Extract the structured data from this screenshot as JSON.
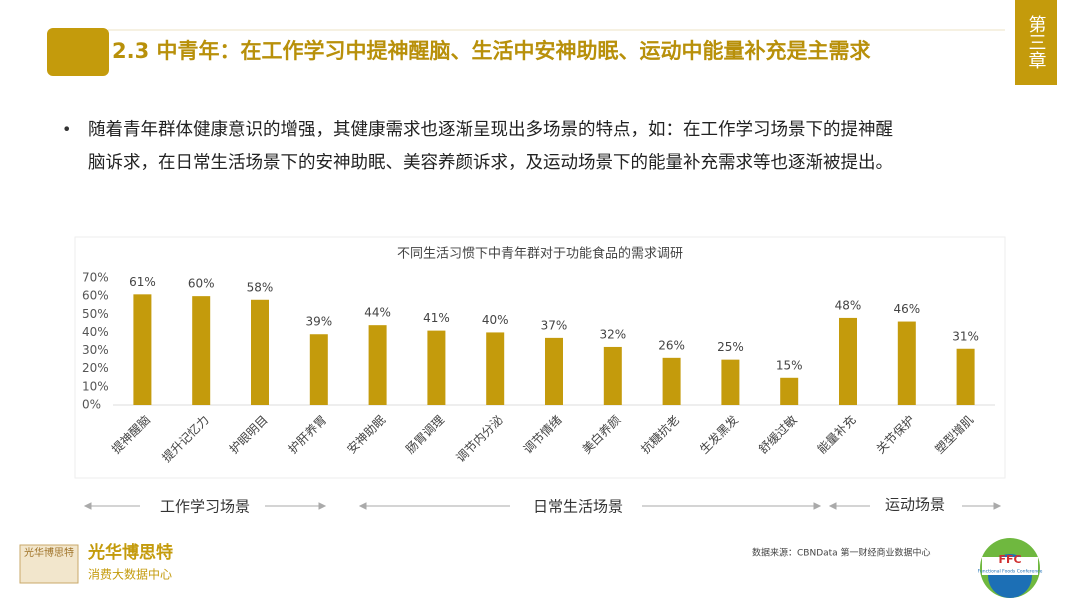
{
  "header": {
    "title": "2.3 中青年：在工作学习中提神醒脑、生活中安神助眠、运动中能量补充是主需求",
    "chapter": "第三章"
  },
  "bullet": [
    "随着青年群体健康意识的增强，其健康需求也逐渐呈现出多场景的特点，如：在工作学习场景下的提神醒",
    "脑诉求，在日常生活场景下的安神助眠、美容养颜诉求，及运动场景下的能量补充需求等也逐渐被提出。"
  ],
  "chart_data": {
    "type": "bar",
    "title": "不同生活习惯下中青年群对于功能食品的需求调研",
    "categories": [
      "提神醒脑",
      "提升记忆力",
      "护眼明目",
      "护肝养胃",
      "安神助眠",
      "肠胃调理",
      "调节内分泌",
      "调节情绪",
      "美白养颜",
      "抗糖抗老",
      "生发黑发",
      "舒缓过敏",
      "能量补充",
      "关节保护",
      "塑型增肌"
    ],
    "values": [
      61,
      60,
      58,
      39,
      44,
      41,
      40,
      37,
      32,
      26,
      25,
      15,
      48,
      46,
      31
    ],
    "value_labels": [
      "61%",
      "60%",
      "58%",
      "39%",
      "44%",
      "41%",
      "40%",
      "37%",
      "32%",
      "26%",
      "25%",
      "15%",
      "48%",
      "46%",
      "31%"
    ],
    "color": "#c49b0c",
    "ylim": [
      0,
      70
    ],
    "yticks": [
      {
        "value": 0,
        "label": "0%"
      },
      {
        "value": 10,
        "label": "10%"
      },
      {
        "value": 20,
        "label": "20%"
      },
      {
        "value": 30,
        "label": "30%"
      },
      {
        "value": 40,
        "label": "40%"
      },
      {
        "value": 50,
        "label": "50%"
      },
      {
        "value": 60,
        "label": "60%"
      },
      {
        "value": 70,
        "label": "70%"
      }
    ],
    "grid": false
  },
  "groups": [
    "工作学习场景",
    "日常生活场景",
    "运动场景"
  ],
  "footer": {
    "source": "数据来源：CBNData 第一财经商业数据中心",
    "logo_name": "光华博思特",
    "logo_sub": "消费大数据中心",
    "logo_badge": "光华博思特",
    "ffc": "FFC",
    "ffc_sub": "Functional Foods Conference"
  }
}
